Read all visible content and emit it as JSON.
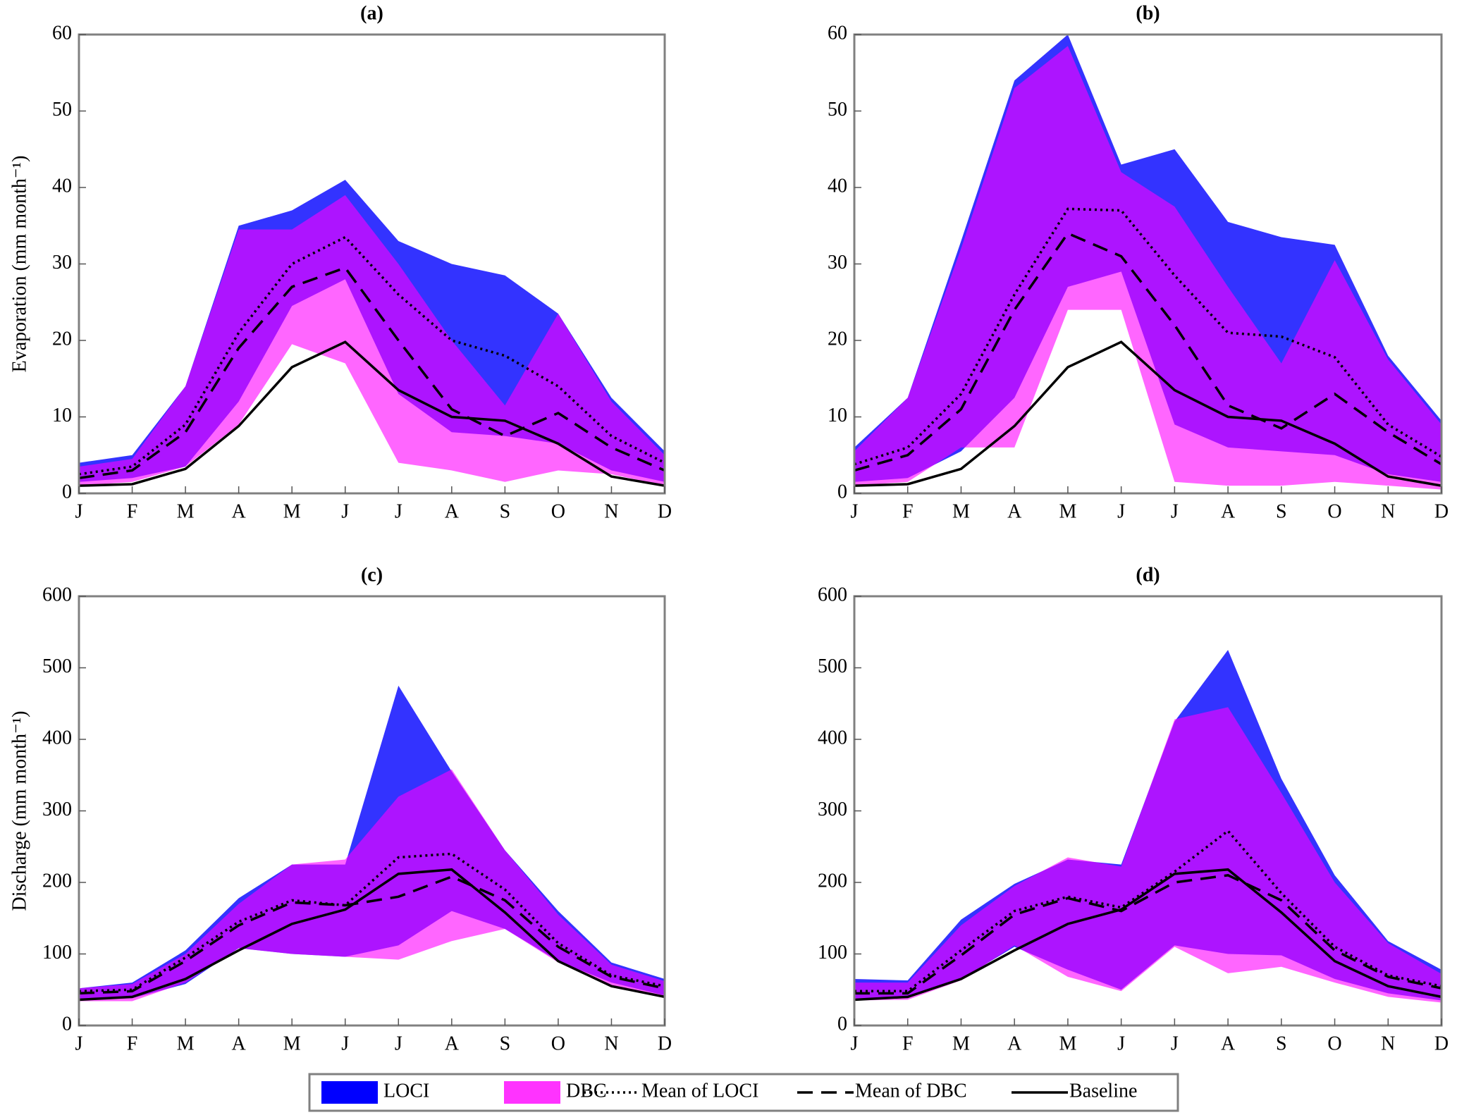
{
  "legend": [
    {
      "name": "LOCI",
      "color": "#0000ff"
    },
    {
      "name": "DBC",
      "color": "#ff00ff"
    },
    {
      "name": "Mean of LOCI",
      "color": "#000000"
    },
    {
      "name": "Mean of DBC",
      "color": "#000000"
    },
    {
      "name": "Baseline",
      "color": "#000000"
    }
  ],
  "chart_data": [
    {
      "type": "band-line",
      "title": "(a)",
      "y_label": "Evaporation (mm month⁻¹)",
      "categories": [
        "J",
        "F",
        "M",
        "A",
        "M",
        "J",
        "J",
        "A",
        "S",
        "O",
        "N",
        "D"
      ],
      "ylim": [
        0,
        60
      ],
      "yticks": [
        0,
        10,
        20,
        30,
        40,
        50,
        60
      ],
      "series": [
        {
          "high": [
            4,
            5,
            14,
            35,
            37,
            41,
            33,
            30,
            28.5,
            23.5,
            12.5,
            5.5
          ],
          "low": [
            1.5,
            2,
            3.5,
            12,
            24.5,
            28,
            13,
            8,
            7.5,
            6.5,
            3,
            1.5
          ]
        },
        {
          "high": [
            3.5,
            4.5,
            14,
            34.5,
            34.5,
            39,
            30,
            20,
            11.5,
            23.5,
            12,
            5
          ],
          "low": [
            1,
            1.5,
            3.5,
            9,
            19.5,
            17,
            4,
            3,
            1.5,
            3,
            2.5,
            1
          ]
        },
        {
          "values": [
            2.5,
            3.5,
            9,
            21,
            30,
            33.5,
            26,
            20,
            18,
            14,
            7.5,
            4
          ]
        },
        {
          "values": [
            2,
            3,
            8,
            19,
            27,
            29.5,
            20,
            11,
            7.5,
            10.5,
            6,
            3
          ]
        },
        {
          "values": [
            1,
            1.2,
            3.2,
            8.8,
            16.5,
            19.8,
            13.5,
            10,
            9.5,
            6.5,
            2.2,
            1
          ]
        }
      ]
    },
    {
      "type": "band-line",
      "title": "(b)",
      "categories": [
        "J",
        "F",
        "M",
        "A",
        "M",
        "J",
        "J",
        "A",
        "S",
        "O",
        "N",
        "D"
      ],
      "ylim": [
        0,
        60
      ],
      "yticks": [
        0,
        10,
        20,
        30,
        40,
        50,
        60
      ],
      "series": [
        {
          "high": [
            6,
            12.5,
            33,
            54,
            60,
            43,
            45,
            35.5,
            33.5,
            32.5,
            18,
            9.5
          ],
          "low": [
            1.5,
            2,
            5.5,
            12.5,
            27,
            29,
            9,
            6,
            5.5,
            5,
            2.5,
            1.5
          ]
        },
        {
          "high": [
            5.5,
            12.5,
            32,
            53,
            58.5,
            42,
            37.5,
            27,
            17,
            30.5,
            17.5,
            9
          ],
          "low": [
            1,
            1.5,
            6,
            6,
            24,
            24,
            1.5,
            1,
            1,
            1.5,
            1,
            0.5
          ]
        },
        {
          "values": [
            3.8,
            6,
            13,
            26,
            37.2,
            37,
            28.5,
            21,
            20.5,
            17.8,
            9,
            4.8
          ]
        },
        {
          "values": [
            3,
            5,
            11,
            24,
            34,
            31,
            22,
            11.5,
            8.5,
            13,
            8,
            3.8
          ]
        },
        {
          "values": [
            1,
            1.2,
            3.2,
            8.8,
            16.5,
            19.8,
            13.5,
            10,
            9.5,
            6.5,
            2.2,
            1
          ]
        }
      ]
    },
    {
      "type": "band-line",
      "title": "(c)",
      "y_label": "Discharge (mm month⁻¹)",
      "categories": [
        "J",
        "F",
        "M",
        "A",
        "M",
        "J",
        "J",
        "A",
        "S",
        "O",
        "N",
        "D"
      ],
      "ylim": [
        0,
        600
      ],
      "yticks": [
        0,
        100,
        200,
        300,
        400,
        500,
        600
      ],
      "series": [
        {
          "high": [
            52,
            60,
            105,
            178,
            225,
            225,
            475,
            355,
            245,
            160,
            88,
            65
          ],
          "low": [
            36,
            38,
            58,
            108,
            100,
            96,
            112,
            160,
            135,
            90,
            60,
            42
          ]
        },
        {
          "high": [
            52,
            58,
            100,
            170,
            225,
            232,
            320,
            358,
            245,
            155,
            85,
            62
          ],
          "low": [
            34,
            34,
            60,
            108,
            100,
            96,
            92,
            118,
            135,
            88,
            55,
            40
          ]
        },
        {
          "values": [
            48,
            50,
            95,
            145,
            175,
            168,
            235,
            240,
            190,
            115,
            70,
            55
          ]
        },
        {
          "values": [
            45,
            48,
            90,
            140,
            172,
            168,
            180,
            208,
            175,
            110,
            68,
            52
          ]
        },
        {
          "values": [
            36,
            40,
            65,
            105,
            142,
            162,
            212,
            218,
            158,
            90,
            55,
            40
          ]
        }
      ]
    },
    {
      "type": "band-line",
      "title": "(d)",
      "categories": [
        "J",
        "F",
        "M",
        "A",
        "M",
        "J",
        "J",
        "A",
        "S",
        "O",
        "N",
        "D"
      ],
      "ylim": [
        0,
        600
      ],
      "yticks": [
        0,
        100,
        200,
        300,
        400,
        500,
        600
      ],
      "series": [
        {
          "high": [
            65,
            63,
            148,
            198,
            232,
            225,
            425,
            525,
            345,
            210,
            118,
            78
          ],
          "low": [
            38,
            38,
            65,
            110,
            78,
            50,
            112,
            100,
            98,
            65,
            45,
            35
          ]
        },
        {
          "high": [
            60,
            60,
            140,
            195,
            235,
            222,
            428,
            445,
            325,
            200,
            115,
            72
          ],
          "low": [
            35,
            36,
            63,
            112,
            68,
            48,
            110,
            73,
            82,
            60,
            40,
            32
          ]
        },
        {
          "values": [
            48,
            48,
            105,
            160,
            180,
            165,
            215,
            272,
            185,
            110,
            70,
            55
          ]
        },
        {
          "values": [
            45,
            45,
            98,
            155,
            178,
            160,
            200,
            210,
            175,
            105,
            68,
            52
          ]
        },
        {
          "values": [
            36,
            40,
            65,
            105,
            142,
            162,
            212,
            218,
            158,
            90,
            55,
            40
          ]
        }
      ]
    }
  ]
}
